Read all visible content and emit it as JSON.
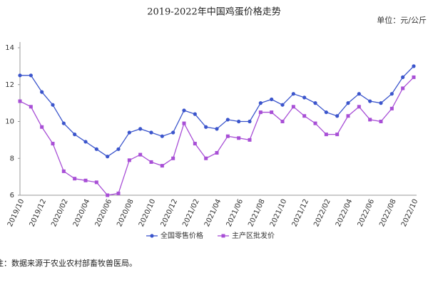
{
  "chart_data": {
    "type": "line",
    "title": "2019-2022年中国鸡蛋价格走势",
    "unit": "单位：元/公斤",
    "note": "注：数据来源于农业农村部畜牧兽医局。",
    "categories": [
      "2019/10",
      null,
      "2019/12",
      null,
      "2020/02",
      null,
      "2020/04",
      null,
      "2020/06",
      null,
      "2020/08",
      null,
      "2020/10",
      null,
      "2020/12",
      null,
      "2021/02",
      null,
      "2021/04",
      null,
      "2021/06",
      null,
      "2021/08",
      null,
      "2021/10",
      null,
      "2021/12",
      null,
      "2022/02",
      null,
      "2022/04",
      null,
      "2022/06",
      null,
      "2022/08",
      null,
      "2022/10"
    ],
    "series": [
      {
        "name": "全国零售价格",
        "color": "#3b55cc",
        "marker": "circle",
        "values": [
          12.5,
          12.5,
          11.6,
          10.9,
          9.9,
          9.3,
          8.9,
          8.5,
          8.1,
          8.5,
          9.4,
          9.6,
          9.4,
          9.2,
          9.4,
          10.6,
          10.4,
          9.7,
          9.6,
          10.1,
          10.0,
          10.0,
          11.0,
          11.2,
          10.9,
          11.5,
          11.3,
          11.0,
          10.5,
          10.3,
          11.0,
          11.5,
          11.1,
          11.0,
          11.5,
          12.4,
          13.0
        ]
      },
      {
        "name": "主产区批发价",
        "color": "#a84fd6",
        "marker": "square",
        "values": [
          11.1,
          10.8,
          9.7,
          8.8,
          7.3,
          6.9,
          6.8,
          6.7,
          6.0,
          6.1,
          7.9,
          8.2,
          7.8,
          7.6,
          8.0,
          9.9,
          8.8,
          8.0,
          8.3,
          9.2,
          9.1,
          9.0,
          10.5,
          10.5,
          10.0,
          10.8,
          10.3,
          9.9,
          9.3,
          9.3,
          10.3,
          10.8,
          10.1,
          10.0,
          10.7,
          11.8,
          12.4
        ]
      }
    ],
    "ylim": [
      6,
      14
    ],
    "yticks": [
      6,
      8,
      10,
      12,
      14
    ],
    "grid": false
  }
}
